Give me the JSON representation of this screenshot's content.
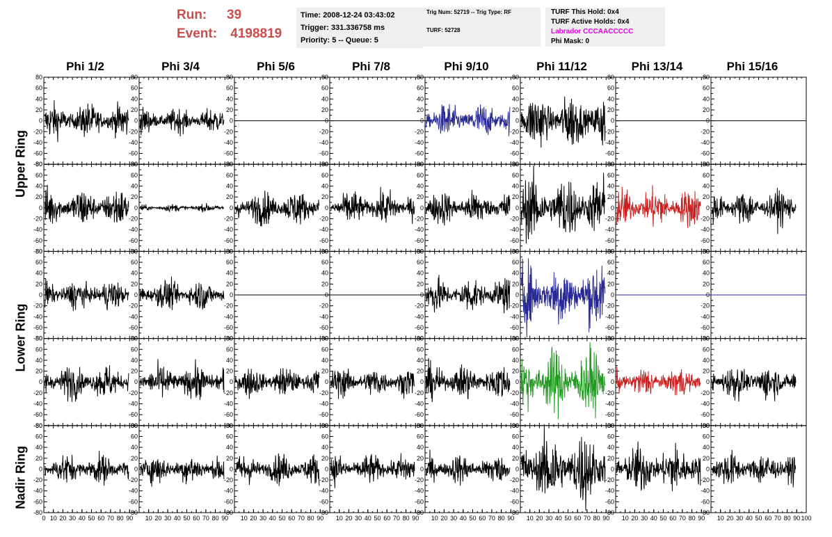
{
  "header": {
    "run_label": "Run:",
    "run_value": "39",
    "event_label": "Event:",
    "event_value": "4198819"
  },
  "info_time": {
    "line1": "Time: 2008-12-24 03:43:02",
    "line2": "Trigger: 331.336758 ms",
    "line3": "Priority: 5 -- Queue: 5"
  },
  "info_trig": {
    "line1": "Trig Num: 52719 -- Trig Type: RF",
    "line2": "TURF: 52728"
  },
  "info_turf": {
    "line1": "TURF This Hold: 0x4",
    "line2": "TURF Active Holds: 0x4",
    "line3": "Labrador CCCAACCCCC",
    "line4": "Phi Mask: 0"
  },
  "columns": [
    "Phi 1/2",
    "Phi 3/4",
    "Phi 5/6",
    "Phi 7/8",
    "Phi 9/10",
    "Phi 11/12",
    "Phi 13/14",
    "Phi 15/16"
  ],
  "rings": [
    "Upper Ring",
    "Lower Ring",
    "Nadir Ring"
  ],
  "colors": {
    "black": "#000000",
    "blue": "#2a2a96",
    "red": "#cc2020",
    "green": "#1f9a1f",
    "header_red": "#cc4c4c",
    "labrador_magenta": "#e100e1",
    "info_bg": "#efefef"
  },
  "chart_data": {
    "type": "line",
    "ylim": [
      -80,
      80
    ],
    "yticks": [
      "80",
      "60",
      "40",
      "20",
      "0",
      "-20",
      "-40",
      "-60",
      "-80"
    ],
    "xlim": [
      0,
      100
    ],
    "xticks_first": [
      "0",
      "10",
      "20",
      "30",
      "40",
      "50",
      "60",
      "70",
      "80",
      "90"
    ],
    "xticks_rest": [
      "10",
      "20",
      "30",
      "40",
      "50",
      "60",
      "70",
      "80",
      "90"
    ],
    "xtick_last": "100",
    "panels": [
      [
        {
          "amp": 14,
          "color": "black"
        },
        {
          "amp": 10,
          "color": "black"
        },
        {
          "amp": 0,
          "color": "black"
        },
        {
          "amp": 0,
          "color": "black"
        },
        {
          "amp": 14,
          "color": "blue"
        },
        {
          "amp": 22,
          "color": "black"
        },
        {
          "amp": 0,
          "color": "black"
        },
        {
          "amp": 0,
          "color": "black"
        }
      ],
      [
        {
          "amp": 16,
          "color": "black"
        },
        {
          "amp": 3,
          "color": "black"
        },
        {
          "amp": 14,
          "color": "black"
        },
        {
          "amp": 14,
          "color": "black"
        },
        {
          "amp": 14,
          "color": "black"
        },
        {
          "amp": 26,
          "color": "black"
        },
        {
          "amp": 16,
          "color": "red"
        },
        {
          "amp": 14,
          "color": "black"
        }
      ],
      [
        {
          "amp": 12,
          "color": "black"
        },
        {
          "amp": 12,
          "color": "black"
        },
        {
          "amp": 0,
          "color": "black"
        },
        {
          "amp": 0,
          "color": "black"
        },
        {
          "amp": 14,
          "color": "black"
        },
        {
          "amp": 26,
          "color": "blue"
        },
        {
          "amp": 0,
          "color": "blue"
        },
        {
          "amp": 0,
          "color": "blue"
        }
      ],
      [
        {
          "amp": 14,
          "color": "black"
        },
        {
          "amp": 14,
          "color": "black"
        },
        {
          "amp": 12,
          "color": "black"
        },
        {
          "amp": 12,
          "color": "black"
        },
        {
          "amp": 14,
          "color": "black"
        },
        {
          "amp": 26,
          "color": "green"
        },
        {
          "amp": 12,
          "color": "red"
        },
        {
          "amp": 14,
          "color": "black"
        }
      ],
      [
        {
          "amp": 12,
          "color": "black"
        },
        {
          "amp": 12,
          "color": "black"
        },
        {
          "amp": 12,
          "color": "black"
        },
        {
          "amp": 12,
          "color": "black"
        },
        {
          "amp": 12,
          "color": "black"
        },
        {
          "amp": 30,
          "color": "black"
        },
        {
          "amp": 20,
          "color": "black"
        },
        {
          "amp": 14,
          "color": "black"
        }
      ]
    ]
  }
}
